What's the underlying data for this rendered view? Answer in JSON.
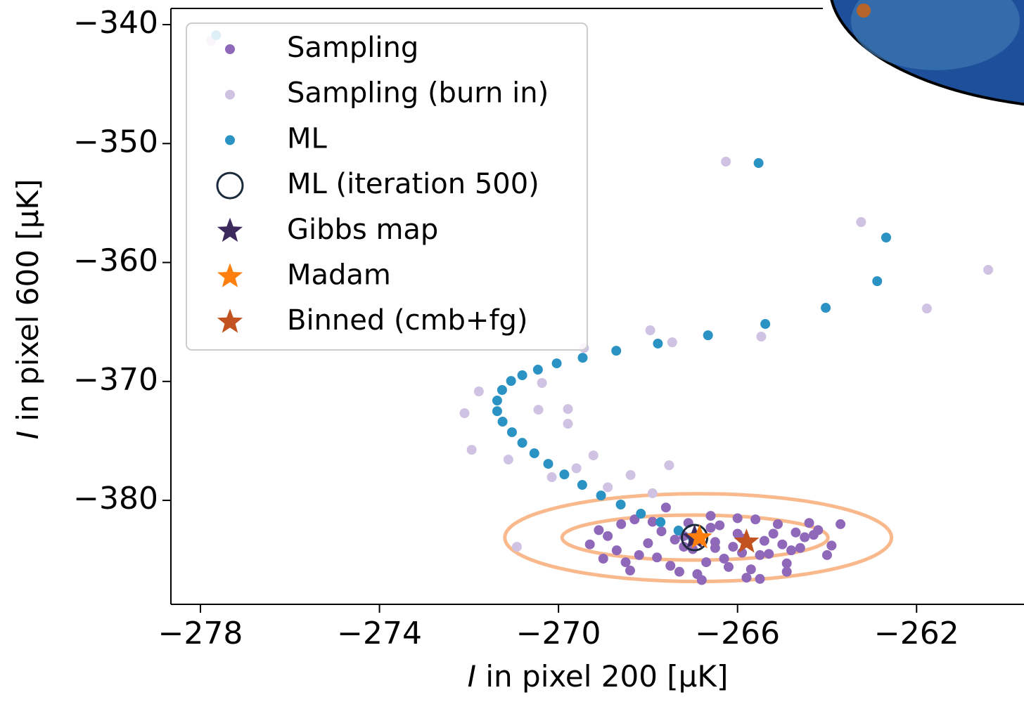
{
  "chart_data": {
    "type": "scatter",
    "xlabel_var": "I",
    "xlabel": "in pixel 200 [μK]",
    "ylabel_var": "I",
    "ylabel": "in pixel 600 [μK]",
    "xlim": [
      -278.66,
      -259.6
    ],
    "ylim": [
      -388.74,
      -338.64
    ],
    "xticks": [
      {
        "value": -278,
        "label": "−278"
      },
      {
        "value": -274,
        "label": "−274"
      },
      {
        "value": -270,
        "label": "−270"
      },
      {
        "value": -266,
        "label": "−266"
      },
      {
        "value": -262,
        "label": "−262"
      }
    ],
    "yticks": [
      {
        "value": -340,
        "label": "−340"
      },
      {
        "value": -350,
        "label": "−350"
      },
      {
        "value": -360,
        "label": "−360"
      },
      {
        "value": -370,
        "label": "−370"
      },
      {
        "value": -380,
        "label": "−380"
      }
    ],
    "contours": [
      {
        "cx": -266.88,
        "cy": -383.13,
        "rx": 4.32,
        "ry": 3.69,
        "color": "#f9b98c"
      },
      {
        "cx": -266.95,
        "cy": -383.13,
        "rx": 2.97,
        "ry": 1.89,
        "color": "#f9b98c"
      }
    ],
    "legend": "upper left",
    "series": [
      {
        "name": "Sampling (burn in)",
        "marker": "dot",
        "color": "#cfc2e2",
        "x": [
          -266.26,
          -263.24,
          -260.4,
          -261.77,
          -265.47,
          -267.95,
          -267.46,
          -269.43,
          -270.37,
          -271.78,
          -272.1,
          -270.45,
          -269.79,
          -269.79,
          -271.94,
          -271.12,
          -269.22,
          -270.15,
          -267.53,
          -268.39,
          -277.76,
          -270.93,
          -268.9,
          -267.9,
          -269.6
        ],
        "y": [
          -351.52,
          -356.6,
          -360.62,
          -363.87,
          -366.23,
          -365.7,
          -366.71,
          -367.18,
          -370.13,
          -370.84,
          -372.67,
          -372.38,
          -372.32,
          -373.56,
          -375.75,
          -376.57,
          -376.22,
          -378.05,
          -377.05,
          -377.87,
          -341.36,
          -383.9,
          -378.9,
          -379.4,
          -377.3
        ]
      },
      {
        "name": "Sampling",
        "marker": "dot",
        "color": "#9068ba",
        "x": [
          -268.6,
          -268.2,
          -267.9,
          -267.5,
          -267.2,
          -266.9,
          -266.6,
          -266.3,
          -266.0,
          -265.7,
          -265.4,
          -265.1,
          -264.8,
          -264.5,
          -264.2,
          -263.9,
          -268.9,
          -268.4,
          -268.0,
          -267.7,
          -267.3,
          -267.0,
          -266.7,
          -266.4,
          -266.1,
          -265.8,
          -265.5,
          -265.2,
          -264.9,
          -264.6,
          -264.3,
          -264.0,
          -269.1,
          -268.7,
          -268.3,
          -267.8,
          -267.4,
          -267.1,
          -266.8,
          -266.5,
          -266.2,
          -265.9,
          -265.6,
          -265.3,
          -265.0,
          -264.7,
          -264.4,
          -269.3,
          -266.5,
          -265.9,
          -267.2,
          -266.0,
          -263.7,
          -268.5,
          -264.9,
          -266.6,
          -267.6,
          -265.5,
          -269.0,
          -266.9
        ],
        "y": [
          -382.0,
          -384.6,
          -381.8,
          -385.5,
          -383.0,
          -386.2,
          -382.3,
          -384.9,
          -381.5,
          -385.8,
          -383.4,
          -382.0,
          -384.2,
          -383.1,
          -382.5,
          -383.8,
          -383.0,
          -385.9,
          -383.6,
          -382.6,
          -386.0,
          -384.1,
          -385.2,
          -382.1,
          -383.9,
          -386.5,
          -384.6,
          -382.8,
          -385.3,
          -384.0,
          -382.9,
          -384.6,
          -382.5,
          -384.2,
          -381.6,
          -384.8,
          -383.3,
          -381.9,
          -386.7,
          -384.0,
          -385.6,
          -383.2,
          -381.6,
          -384.5,
          -383.7,
          -382.7,
          -381.9,
          -383.7,
          -383.5,
          -384.4,
          -383.9,
          -382.8,
          -382.0,
          -385.2,
          -386.0,
          -381.3,
          -380.6,
          -386.6,
          -384.9,
          -383.0
        ]
      },
      {
        "name": "ML",
        "marker": "dot",
        "color": "#2b93c3",
        "x": [
          -277.65,
          -265.53,
          -262.68,
          -262.88,
          -264.03,
          -265.38,
          -266.66,
          -267.78,
          -268.71,
          -269.46,
          -270.04,
          -270.46,
          -270.81,
          -271.06,
          -271.26,
          -271.37,
          -271.37,
          -271.25,
          -271.04,
          -270.81,
          -270.54,
          -270.23,
          -269.87,
          -269.47,
          -269.05,
          -268.61,
          -268.16,
          -267.72,
          -267.32,
          -267.01
        ],
        "y": [
          -340.89,
          -351.64,
          -357.9,
          -361.57,
          -363.81,
          -365.17,
          -366.12,
          -366.82,
          -367.42,
          -368.01,
          -368.48,
          -369.01,
          -369.48,
          -369.96,
          -370.72,
          -371.61,
          -372.5,
          -373.38,
          -374.27,
          -375.16,
          -376.04,
          -376.93,
          -377.82,
          -378.7,
          -379.59,
          -380.35,
          -381.12,
          -381.83,
          -382.54,
          -383.13
        ]
      },
      {
        "name": "ML (iteration 500)",
        "marker": "circle",
        "color": "#1b2a3a",
        "x": [
          -266.96
        ],
        "y": [
          -383.13
        ]
      },
      {
        "name": "Gibbs map",
        "marker": "star",
        "color": "#3d2a5c",
        "x": [
          -266.96
        ],
        "y": [
          -383.13
        ]
      },
      {
        "name": "Madam",
        "marker": "star",
        "color": "#ff7f0e",
        "x": [
          -266.85
        ],
        "y": [
          -383.13
        ]
      },
      {
        "name": "Binned (cmb+fg)",
        "marker": "star",
        "color": "#c2521f",
        "x": [
          -265.8
        ],
        "y": [
          -383.49
        ]
      }
    ],
    "legend_order": [
      1,
      0,
      2,
      3,
      4,
      5,
      6
    ]
  }
}
